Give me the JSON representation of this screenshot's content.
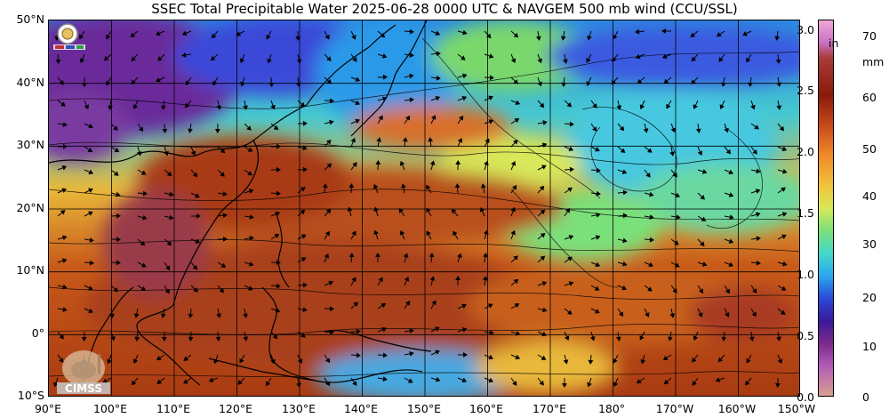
{
  "title": "SSEC Total Precipitable Water  2025-06-28 0000 UTC & NAVGEM 500 mb wind (CCU/SSL)",
  "map": {
    "lat_labels": [
      "50°N",
      "40°N",
      "30°N",
      "20°N",
      "10°N",
      "0°",
      "10°S"
    ],
    "lon_labels": [
      "90°E",
      "100°E",
      "110°E",
      "120°E",
      "130°E",
      "140°E",
      "150°E",
      "160°E",
      "170°E",
      "180°",
      "170°W",
      "160°W",
      "150°W"
    ],
    "lat_range": [
      -10,
      50
    ],
    "lon_range": [
      90,
      210
    ],
    "grid": true
  },
  "colorbar": {
    "inch_labels": [
      "3.0",
      "2.5",
      "2.0",
      "1.5",
      "1.0",
      "0.5",
      "0.0"
    ],
    "inch_unit": "in",
    "mm_labels": [
      "70",
      "60",
      "50",
      "40",
      "30",
      "20",
      "10",
      "0"
    ],
    "mm_unit": "mm",
    "colors": [
      "#f2a0d8",
      "#b25ab8",
      "#7a2a8a",
      "#3a1a9a",
      "#2a4ad8",
      "#2aa8f0",
      "#46d8c8",
      "#7ae07a",
      "#d8e85a",
      "#f2c23a",
      "#f08a2a",
      "#c84a1a",
      "#8a1a0a",
      "#c87050",
      "#e8a0a0"
    ]
  },
  "logos": {
    "top_left": "SSEC logo",
    "bottom_left": "CIMSS"
  }
}
